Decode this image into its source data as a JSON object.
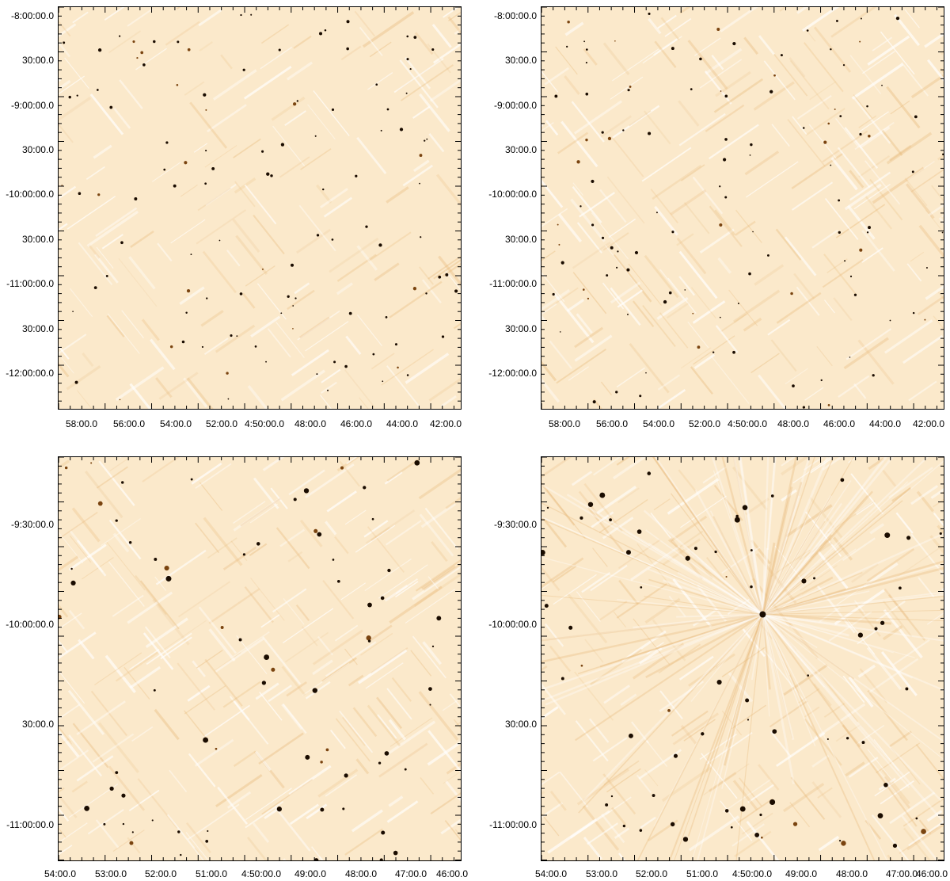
{
  "panels": [
    {
      "id": "top-left",
      "y_labels": [
        "-8:00:00.0",
        "30:00.0",
        "-9:00:00.0",
        "30:00.0",
        "-10:00:00.0",
        "30:00.0",
        "-11:00:00.0",
        "30:00.0",
        "-12:00:00.0"
      ],
      "x_labels": [
        "58:00.0",
        "56:00.0",
        "54:00.0",
        "52:00.0",
        "4:50:00.0",
        "48:00.0",
        "46:00.0",
        "44:00.0",
        "42:00.0"
      ],
      "style": "smooth"
    },
    {
      "id": "top-right",
      "y_labels": [
        "-8:00:00.0",
        "30:00.0",
        "-9:00:00.0",
        "30:00.0",
        "-10:00:00.0",
        "30:00.0",
        "-11:00:00.0",
        "30:00.0",
        "-12:00:00.0"
      ],
      "x_labels": [
        "58:00.0",
        "56:00.0",
        "54:00.0",
        "52:00.0",
        "4:50:00.0",
        "48:00.0",
        "46:00.0",
        "44:00.0",
        "42:00.0"
      ],
      "style": "noisy"
    },
    {
      "id": "bottom-left",
      "y_labels": [
        "-9:30:00.0",
        "-10:00:00.0",
        "30:00.0",
        "-11:00:00.0"
      ],
      "x_labels": [
        "54:00.0",
        "53:00.0",
        "52:00.0",
        "51:00.0",
        "4:50:00.0",
        "49:00.0",
        "48:00.0",
        "47:00.0",
        "46:00.0"
      ],
      "style": "smooth-zoom"
    },
    {
      "id": "bottom-right",
      "y_labels": [
        "-9:30:00.0",
        "-10:00:00.0",
        "30:00.0",
        "-11:00:00.0"
      ],
      "x_labels": [
        "54:00.0",
        "53:00.0",
        "52:00.0",
        "51:00.0",
        "4:50:00.0",
        "49:00.0",
        "48:00.0",
        "47:00.0",
        "46:00.0"
      ],
      "style": "radial-zoom"
    }
  ],
  "colors": {
    "background": "#fbe9cb",
    "light": "#ffffff",
    "source": "#1a0c00",
    "mid": "#e8b97a"
  }
}
